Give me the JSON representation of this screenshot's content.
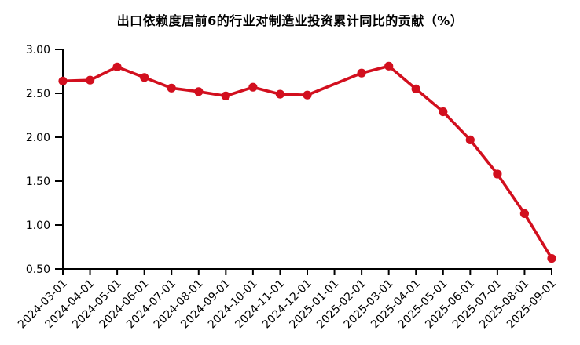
{
  "page": {
    "background_color": "#ffffff",
    "text_color": "#000000"
  },
  "chart_data": {
    "type": "line",
    "title": "出口依赖度居前6的行业对制造业投资累计同比的贡献（%）",
    "categories": [
      "2024-03-01",
      "2024-04-01",
      "2024-05-01",
      "2024-06-01",
      "2024-07-01",
      "2024-08-01",
      "2024-09-01",
      "2024-10-01",
      "2024-11-01",
      "2024-12-01",
      "2025-01-01",
      "2025-02-01",
      "2025-03-01",
      "2025-04-01",
      "2025-05-01",
      "2025-06-01",
      "2025-07-01",
      "2025-08-01",
      "2025-09-01"
    ],
    "values": [
      2.64,
      2.65,
      2.8,
      2.68,
      2.56,
      2.52,
      2.47,
      2.57,
      2.49,
      2.48,
      null,
      2.73,
      2.81,
      2.55,
      2.29,
      1.97,
      1.58,
      1.13,
      0.62
    ],
    "missing_note": "2025-01-01 has no plotted marker; line connects 2024-12-01 to 2025-02-01",
    "xlabel": "",
    "ylabel": "",
    "ylim": [
      0.5,
      3.0
    ],
    "ytick_labels": [
      "3.00",
      "2.50",
      "2.00",
      "1.50",
      "1.00",
      "0.50"
    ],
    "ytick_values": [
      3.0,
      2.5,
      2.0,
      1.5,
      1.0,
      0.5
    ],
    "x_label_rotation_deg": -45,
    "grid": false,
    "legend_position": "none",
    "line_color": "#D20F1E",
    "marker": "circle",
    "axis_color": "#000000"
  }
}
